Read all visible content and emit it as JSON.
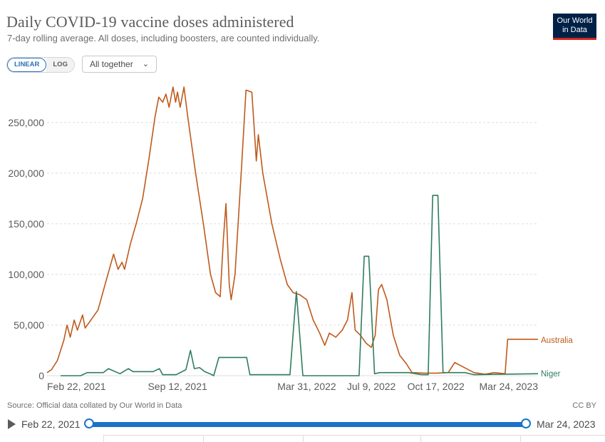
{
  "header": {
    "title": "Daily COVID-19 vaccine doses administered",
    "subtitle": "7-day rolling average. All doses, including boosters, are counted individually.",
    "logo_line1": "Our World",
    "logo_line2": "in Data"
  },
  "controls": {
    "linear_label": "LINEAR",
    "log_label": "LOG",
    "dropdown_value": "All together"
  },
  "footer": {
    "source": "Source: Official data collated by Our World in Data",
    "license": "CC BY"
  },
  "timeline": {
    "start_label": "Feb 22, 2021",
    "end_label": "Mar 24, 2023"
  },
  "colors": {
    "australia": "#be5a1c",
    "niger": "#2f7d5d",
    "grid": "#dddddd",
    "accent": "#1a73c8"
  },
  "chart_data": {
    "type": "line",
    "title": "Daily COVID-19 vaccine doses administered",
    "subtitle": "7-day rolling average. All doses, including boosters, are counted individually.",
    "ylim": [
      0,
      290000
    ],
    "y_ticks": [
      0,
      50000,
      100000,
      150000,
      200000,
      250000
    ],
    "y_tick_labels": [
      "0",
      "50,000",
      "100,000",
      "150,000",
      "200,000",
      "250,000"
    ],
    "x_range": [
      "2021-02-22",
      "2023-03-24"
    ],
    "x_ticks": [
      "2021-02-22",
      "2021-09-12",
      "2022-03-31",
      "2022-07-09",
      "2022-10-17",
      "2023-03-24"
    ],
    "x_tick_labels": [
      "Feb 22, 2021",
      "Sep 12, 2021",
      "Mar 31, 2022",
      "Jul 9, 2022",
      "Oct 17, 2022",
      "Mar 24, 2023"
    ],
    "grid": true,
    "series": [
      {
        "name": "Australia",
        "points": [
          [
            "2021-02-22",
            3000
          ],
          [
            "2021-03-01",
            6000
          ],
          [
            "2021-03-10",
            15000
          ],
          [
            "2021-03-20",
            35000
          ],
          [
            "2021-03-25",
            50000
          ],
          [
            "2021-03-30",
            38000
          ],
          [
            "2021-04-05",
            55000
          ],
          [
            "2021-04-10",
            45000
          ],
          [
            "2021-04-18",
            60000
          ],
          [
            "2021-04-22",
            47000
          ],
          [
            "2021-05-01",
            55000
          ],
          [
            "2021-05-12",
            65000
          ],
          [
            "2021-05-25",
            95000
          ],
          [
            "2021-06-05",
            120000
          ],
          [
            "2021-06-12",
            105000
          ],
          [
            "2021-06-18",
            112000
          ],
          [
            "2021-06-22",
            105000
          ],
          [
            "2021-07-01",
            130000
          ],
          [
            "2021-07-10",
            150000
          ],
          [
            "2021-07-20",
            175000
          ],
          [
            "2021-07-30",
            215000
          ],
          [
            "2021-08-08",
            255000
          ],
          [
            "2021-08-14",
            275000
          ],
          [
            "2021-08-20",
            270000
          ],
          [
            "2021-08-25",
            278000
          ],
          [
            "2021-08-30",
            265000
          ],
          [
            "2021-09-05",
            285000
          ],
          [
            "2021-09-09",
            270000
          ],
          [
            "2021-09-12",
            280000
          ],
          [
            "2021-09-16",
            265000
          ],
          [
            "2021-09-22",
            285000
          ],
          [
            "2021-09-28",
            255000
          ],
          [
            "2021-10-10",
            200000
          ],
          [
            "2021-10-22",
            150000
          ],
          [
            "2021-11-02",
            100000
          ],
          [
            "2021-11-10",
            82000
          ],
          [
            "2021-11-17",
            78000
          ],
          [
            "2021-11-22",
            135000
          ],
          [
            "2021-11-26",
            170000
          ],
          [
            "2021-12-01",
            90000
          ],
          [
            "2021-12-04",
            75000
          ],
          [
            "2021-12-10",
            100000
          ],
          [
            "2021-12-20",
            205000
          ],
          [
            "2021-12-27",
            282000
          ],
          [
            "2022-01-05",
            280000
          ],
          [
            "2022-01-12",
            212000
          ],
          [
            "2022-01-15",
            238000
          ],
          [
            "2022-01-22",
            200000
          ],
          [
            "2022-02-05",
            150000
          ],
          [
            "2022-02-18",
            115000
          ],
          [
            "2022-03-01",
            90000
          ],
          [
            "2022-03-10",
            82000
          ],
          [
            "2022-03-20",
            80000
          ],
          [
            "2022-03-31",
            75000
          ],
          [
            "2022-04-10",
            55000
          ],
          [
            "2022-04-20",
            42000
          ],
          [
            "2022-04-28",
            30000
          ],
          [
            "2022-05-05",
            42000
          ],
          [
            "2022-05-15",
            38000
          ],
          [
            "2022-05-25",
            45000
          ],
          [
            "2022-06-02",
            55000
          ],
          [
            "2022-06-09",
            82000
          ],
          [
            "2022-06-14",
            45000
          ],
          [
            "2022-06-22",
            40000
          ],
          [
            "2022-07-01",
            32000
          ],
          [
            "2022-07-09",
            28000
          ],
          [
            "2022-07-15",
            40000
          ],
          [
            "2022-07-20",
            85000
          ],
          [
            "2022-07-25",
            90000
          ],
          [
            "2022-08-02",
            75000
          ],
          [
            "2022-08-12",
            40000
          ],
          [
            "2022-08-22",
            20000
          ],
          [
            "2022-09-01",
            12000
          ],
          [
            "2022-09-10",
            3000
          ],
          [
            "2022-10-01",
            2500
          ],
          [
            "2022-10-17",
            2500
          ],
          [
            "2022-11-05",
            3000
          ],
          [
            "2022-11-15",
            13000
          ],
          [
            "2022-11-30",
            8000
          ],
          [
            "2022-12-15",
            3000
          ],
          [
            "2023-01-01",
            1500
          ],
          [
            "2023-01-15",
            3000
          ],
          [
            "2023-02-01",
            2000
          ],
          [
            "2023-02-05",
            36000
          ],
          [
            "2023-03-24",
            36000
          ]
        ]
      },
      {
        "name": "Niger",
        "points": [
          [
            "2021-03-15",
            0
          ],
          [
            "2021-04-15",
            0
          ],
          [
            "2021-04-25",
            3000
          ],
          [
            "2021-05-20",
            3000
          ],
          [
            "2021-05-28",
            7000
          ],
          [
            "2021-06-15",
            2000
          ],
          [
            "2021-06-28",
            7000
          ],
          [
            "2021-07-05",
            4000
          ],
          [
            "2021-08-05",
            4000
          ],
          [
            "2021-08-15",
            7000
          ],
          [
            "2021-08-20",
            1000
          ],
          [
            "2021-09-10",
            1000
          ],
          [
            "2021-09-25",
            6000
          ],
          [
            "2021-10-02",
            25000
          ],
          [
            "2021-10-08",
            7000
          ],
          [
            "2021-10-16",
            8000
          ],
          [
            "2021-10-24",
            4000
          ],
          [
            "2021-11-01",
            2000
          ],
          [
            "2021-11-07",
            0
          ],
          [
            "2021-11-15",
            18000
          ],
          [
            "2021-12-28",
            18000
          ],
          [
            "2022-01-02",
            1000
          ],
          [
            "2022-03-05",
            1000
          ],
          [
            "2022-03-15",
            83000
          ],
          [
            "2022-03-25",
            0
          ],
          [
            "2022-06-20",
            0
          ],
          [
            "2022-06-28",
            118000
          ],
          [
            "2022-07-05",
            118000
          ],
          [
            "2022-07-14",
            2000
          ],
          [
            "2022-07-22",
            3000
          ],
          [
            "2022-09-05",
            3000
          ],
          [
            "2022-09-25",
            1000
          ],
          [
            "2022-10-05",
            1000
          ],
          [
            "2022-10-12",
            178000
          ],
          [
            "2022-10-20",
            178000
          ],
          [
            "2022-10-28",
            3000
          ],
          [
            "2022-12-01",
            3000
          ],
          [
            "2022-12-15",
            1000
          ],
          [
            "2023-03-24",
            2000
          ]
        ]
      }
    ]
  }
}
